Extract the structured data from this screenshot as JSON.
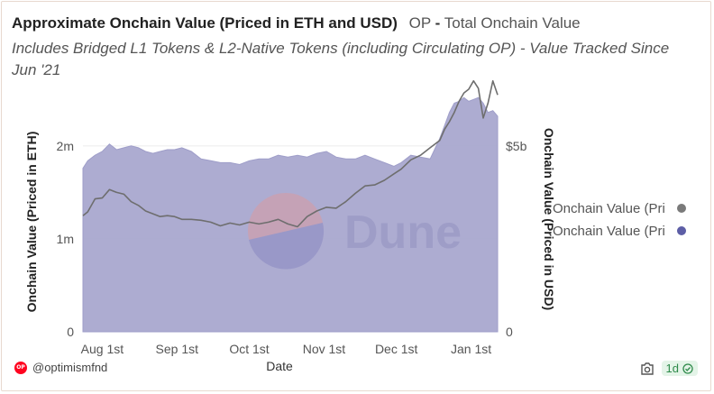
{
  "header": {
    "title": "Approximate Onchain Value (Priced in ETH and USD)",
    "series_label": "OP",
    "dash": "-",
    "series_desc": "Total Onchain Value",
    "subtitle": "Includes Bridged L1 Tokens & L2-Native Tokens (including Circulating OP) - Value Tracked Since Jun '21"
  },
  "footer": {
    "author": "@optimismfnd",
    "op_logo_text": "OP",
    "refresh_badge": "1d",
    "camera_icon": "camera-icon",
    "check_icon": "check-circle-icon"
  },
  "watermark": {
    "text": "Dune"
  },
  "colors": {
    "area": "#a9a8cf",
    "line": "#6e6e6e",
    "legend_grey": "#7a7a7a",
    "legend_purple": "#5d5ea6"
  },
  "chart_data": {
    "type": "area+line",
    "xlabel": "Date",
    "ylabel_left": "Onchain Value (Priced in ETH)",
    "ylabel_right": "Onchain Value (Priced in USD)",
    "x_ticks": [
      "Aug 1st",
      "Sep 1st",
      "Oct 1st",
      "Nov 1st",
      "Dec 1st",
      "Jan 1st"
    ],
    "x_tick_dates": [
      "2021-08-01",
      "2021-09-01",
      "2021-10-01",
      "2021-11-01",
      "2021-12-01",
      "2022-01-01"
    ],
    "x_range": [
      "2021-07-24",
      "2022-01-12"
    ],
    "left_axis": {
      "ticks": [
        0,
        1000000,
        2000000
      ],
      "tick_labels": [
        "0",
        "1m",
        "2m"
      ],
      "ylim": [
        0,
        2600000
      ]
    },
    "right_axis": {
      "ticks": [
        0,
        5000000000
      ],
      "tick_labels": [
        "0",
        "$5b"
      ],
      "ylim": [
        0,
        6500000000
      ]
    },
    "legend": {
      "position": "right",
      "entries": [
        {
          "label": "Onchain Value (Pri",
          "marker": "grey"
        },
        {
          "label": "Onchain Value (Pri",
          "marker": "purple"
        }
      ]
    },
    "series": [
      {
        "name": "Onchain Value (Priced in ETH)",
        "axis": "left",
        "style": "line",
        "dates": [
          "2021-07-24",
          "2021-07-26",
          "2021-07-29",
          "2021-08-01",
          "2021-08-04",
          "2021-08-07",
          "2021-08-10",
          "2021-08-13",
          "2021-08-16",
          "2021-08-19",
          "2021-08-22",
          "2021-08-25",
          "2021-08-28",
          "2021-08-31",
          "2021-09-03",
          "2021-09-07",
          "2021-09-11",
          "2021-09-15",
          "2021-09-19",
          "2021-09-23",
          "2021-09-27",
          "2021-10-01",
          "2021-10-05",
          "2021-10-09",
          "2021-10-13",
          "2021-10-17",
          "2021-10-21",
          "2021-10-25",
          "2021-10-29",
          "2021-11-02",
          "2021-11-06",
          "2021-11-10",
          "2021-11-14",
          "2021-11-18",
          "2021-11-22",
          "2021-11-26",
          "2021-11-30",
          "2021-12-03",
          "2021-12-07",
          "2021-12-11",
          "2021-12-15",
          "2021-12-19",
          "2021-12-21",
          "2021-12-23",
          "2021-12-25",
          "2021-12-27",
          "2021-12-29",
          "2021-12-31",
          "2022-01-02",
          "2022-01-04",
          "2022-01-06",
          "2022-01-08",
          "2022-01-10",
          "2022-01-12"
        ],
        "values": [
          1250000,
          1290000,
          1430000,
          1440000,
          1530000,
          1500000,
          1480000,
          1400000,
          1360000,
          1300000,
          1270000,
          1240000,
          1250000,
          1240000,
          1210000,
          1210000,
          1200000,
          1180000,
          1140000,
          1170000,
          1150000,
          1180000,
          1160000,
          1180000,
          1210000,
          1160000,
          1130000,
          1240000,
          1300000,
          1340000,
          1330000,
          1400000,
          1490000,
          1570000,
          1580000,
          1630000,
          1700000,
          1750000,
          1850000,
          1900000,
          1980000,
          2060000,
          2180000,
          2260000,
          2360000,
          2480000,
          2570000,
          2610000,
          2700000,
          2620000,
          2300000,
          2460000,
          2700000,
          2550000
        ]
      },
      {
        "name": "Onchain Value (Priced in USD)",
        "axis": "right",
        "style": "area",
        "dates": [
          "2021-07-24",
          "2021-07-26",
          "2021-07-29",
          "2021-08-01",
          "2021-08-04",
          "2021-08-07",
          "2021-08-10",
          "2021-08-13",
          "2021-08-16",
          "2021-08-19",
          "2021-08-22",
          "2021-08-25",
          "2021-08-28",
          "2021-08-31",
          "2021-09-03",
          "2021-09-07",
          "2021-09-11",
          "2021-09-15",
          "2021-09-19",
          "2021-09-23",
          "2021-09-27",
          "2021-10-01",
          "2021-10-05",
          "2021-10-09",
          "2021-10-13",
          "2021-10-17",
          "2021-10-21",
          "2021-10-25",
          "2021-10-29",
          "2021-11-02",
          "2021-11-06",
          "2021-11-10",
          "2021-11-14",
          "2021-11-18",
          "2021-11-22",
          "2021-11-26",
          "2021-11-30",
          "2021-12-03",
          "2021-12-07",
          "2021-12-11",
          "2021-12-15",
          "2021-12-19",
          "2021-12-21",
          "2021-12-23",
          "2021-12-25",
          "2021-12-27",
          "2021-12-29",
          "2021-12-31",
          "2022-01-02",
          "2022-01-04",
          "2022-01-06",
          "2022-01-08",
          "2022-01-10",
          "2022-01-12"
        ],
        "values": [
          4400000000,
          4600000000,
          4750000000,
          4850000000,
          5050000000,
          4900000000,
          4950000000,
          5000000000,
          4950000000,
          4850000000,
          4800000000,
          4850000000,
          4900000000,
          4900000000,
          4950000000,
          4850000000,
          4650000000,
          4600000000,
          4550000000,
          4550000000,
          4500000000,
          4600000000,
          4650000000,
          4650000000,
          4750000000,
          4700000000,
          4750000000,
          4700000000,
          4800000000,
          4850000000,
          4700000000,
          4650000000,
          4650000000,
          4750000000,
          4650000000,
          4550000000,
          4450000000,
          4550000000,
          4750000000,
          4700000000,
          4650000000,
          5200000000,
          5550000000,
          5900000000,
          6150000000,
          6200000000,
          6300000000,
          6200000000,
          6250000000,
          6300000000,
          6150000000,
          5900000000,
          5950000000,
          5800000000
        ]
      }
    ]
  }
}
